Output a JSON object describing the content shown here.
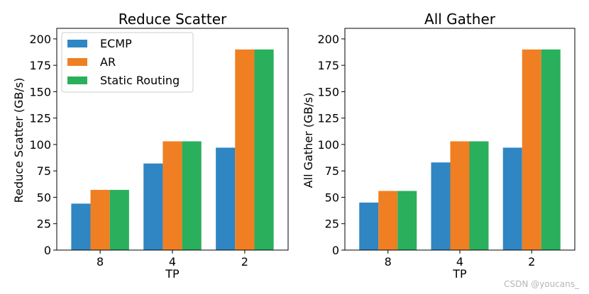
{
  "colors": {
    "ECMP": "#2f86c3",
    "AR": "#ef7f22",
    "Static Routing": "#2aaf5d"
  },
  "watermark": "CSDN @youcans_",
  "chart_data": [
    {
      "type": "bar",
      "title": "Reduce Scatter",
      "xlabel": "TP",
      "ylabel": "Reduce Scatter (GB/s)",
      "categories": [
        "8",
        "4",
        "2"
      ],
      "ylim": [
        0,
        210
      ],
      "yticks": [
        0,
        25,
        50,
        75,
        100,
        125,
        150,
        175,
        200
      ],
      "grid": false,
      "legend": "top-left",
      "series": [
        {
          "name": "ECMP",
          "values": [
            44,
            82,
            97
          ]
        },
        {
          "name": "AR",
          "values": [
            57,
            103,
            190
          ]
        },
        {
          "name": "Static Routing",
          "values": [
            57,
            103,
            190
          ]
        }
      ]
    },
    {
      "type": "bar",
      "title": "All Gather",
      "xlabel": "TP",
      "ylabel": "All Gather (GB/s)",
      "categories": [
        "8",
        "4",
        "2"
      ],
      "ylim": [
        0,
        210
      ],
      "yticks": [
        0,
        25,
        50,
        75,
        100,
        125,
        150,
        175,
        200
      ],
      "grid": false,
      "legend": "none",
      "series": [
        {
          "name": "ECMP",
          "values": [
            45,
            83,
            97
          ]
        },
        {
          "name": "AR",
          "values": [
            56,
            103,
            190
          ]
        },
        {
          "name": "Static Routing",
          "values": [
            56,
            103,
            190
          ]
        }
      ]
    }
  ]
}
